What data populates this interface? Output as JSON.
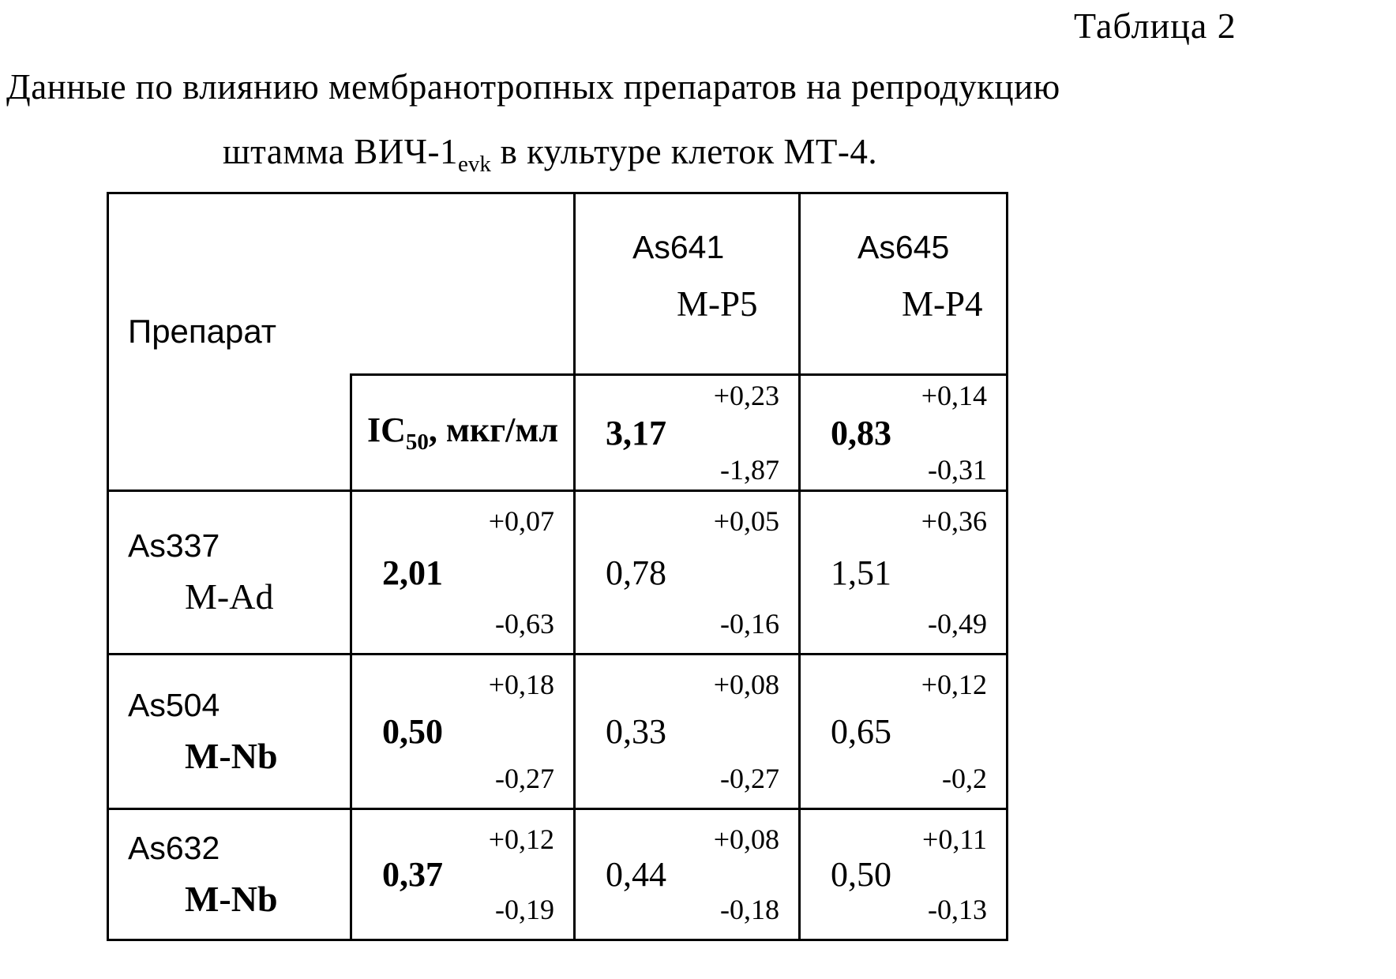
{
  "meta": {
    "paper_color": "#ffffff",
    "ink_color": "#000000"
  },
  "page": {
    "table_label": "Таблица 2",
    "title_line1": "Данные по влиянию мембранотропных препаратов на репродукцию",
    "title_line2": {
      "pre": "штамма ВИЧ-1",
      "sub": "evk",
      "post": " в культуре клеток МТ-4."
    }
  },
  "table": {
    "corner_header": "Препарат",
    "ic50_label": {
      "pre": "IC",
      "sub": "50",
      "post": ", мкг/мл"
    },
    "ref_columns": [
      {
        "code": "As641",
        "type": "M-P5",
        "value": "3,17",
        "plus": "+0,23",
        "minus": "-1,87"
      },
      {
        "code": "As645",
        "type": "M-P4",
        "value": "0,83",
        "plus": "+0,14",
        "minus": "-0,31"
      }
    ],
    "rows": [
      {
        "code": "As337",
        "type": "M-Ad",
        "ic50": {
          "value": "2,01",
          "plus": "+0,07",
          "minus": "-0,63"
        },
        "as641": {
          "value": "0,78",
          "plus": "+0,05",
          "minus": "-0,16"
        },
        "as645": {
          "value": "1,51",
          "plus": "+0,36",
          "minus": "-0,49"
        }
      },
      {
        "code": "As504",
        "type": "M-Nb",
        "ic50": {
          "value": "0,50",
          "plus": "+0,18",
          "minus": "-0,27"
        },
        "as641": {
          "value": "0,33",
          "plus": "+0,08",
          "minus": "-0,27"
        },
        "as645": {
          "value": "0,65",
          "plus": "+0,12",
          "minus": "-0,2"
        }
      },
      {
        "code": "As632",
        "type": "M-Nb",
        "ic50": {
          "value": "0,37",
          "plus": "+0,12",
          "minus": "-0,19"
        },
        "as641": {
          "value": "0,44",
          "plus": "+0,08",
          "minus": "-0,18"
        },
        "as645": {
          "value": "0,50",
          "plus": "+0,11",
          "minus": "-0,13"
        }
      }
    ]
  }
}
